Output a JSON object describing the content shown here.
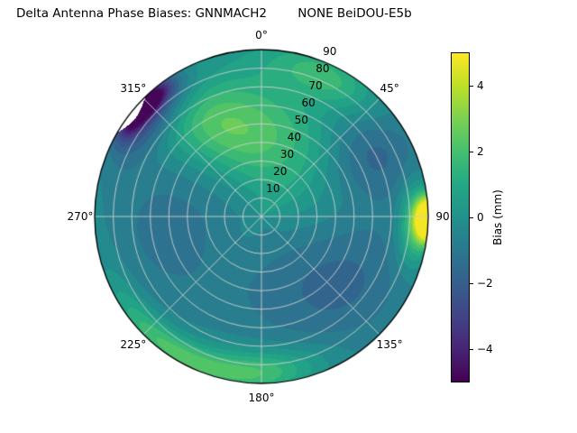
{
  "chart_data": {
    "type": "heatmap",
    "projection": "polar",
    "title": "Delta Antenna Phase Biases: GNNMACH2        NONE BeiDOU-E5b",
    "theta_direction": "clockwise",
    "theta_zero": "top",
    "theta_ticks": [
      {
        "deg": 0,
        "label": "0°"
      },
      {
        "deg": 45,
        "label": "45°"
      },
      {
        "deg": 90,
        "label": "90"
      },
      {
        "deg": 135,
        "label": "135°"
      },
      {
        "deg": 180,
        "label": "180°"
      },
      {
        "deg": 225,
        "label": "225°"
      },
      {
        "deg": 270,
        "label": "270°"
      },
      {
        "deg": 315,
        "label": "315°"
      }
    ],
    "radial_ticks": [
      {
        "v": 10,
        "label": "10"
      },
      {
        "v": 20,
        "label": "20"
      },
      {
        "v": 30,
        "label": "30"
      },
      {
        "v": 40,
        "label": "40"
      },
      {
        "v": 50,
        "label": "50"
      },
      {
        "v": 60,
        "label": "60"
      },
      {
        "v": 70,
        "label": "70"
      },
      {
        "v": 80,
        "label": "80"
      },
      {
        "v": 90,
        "label": "90"
      }
    ],
    "radial_max": 90,
    "radial_label_azimuth_deg": 22.5,
    "grid": true,
    "colorbar": {
      "label": "Bias (mm)",
      "vmin": -5,
      "vmax": 5,
      "ticks": [
        {
          "v": 4,
          "label": "4"
        },
        {
          "v": 2,
          "label": "2"
        },
        {
          "v": 0,
          "label": "0"
        },
        {
          "v": -2,
          "label": "−2"
        },
        {
          "v": -4,
          "label": "−4"
        }
      ]
    },
    "colormap": {
      "name": "viridis",
      "stops": [
        {
          "t": 0.0,
          "color": "#440154"
        },
        {
          "t": 0.1,
          "color": "#482475"
        },
        {
          "t": 0.2,
          "color": "#414487"
        },
        {
          "t": 0.3,
          "color": "#355f8d"
        },
        {
          "t": 0.4,
          "color": "#2a788e"
        },
        {
          "t": 0.5,
          "color": "#21918c"
        },
        {
          "t": 0.6,
          "color": "#22a884"
        },
        {
          "t": 0.7,
          "color": "#44bf70"
        },
        {
          "t": 0.8,
          "color": "#7ad151"
        },
        {
          "t": 0.9,
          "color": "#bddf26"
        },
        {
          "t": 1.0,
          "color": "#fde725"
        }
      ]
    },
    "contour_level_step_mm": 0.5,
    "field_model": {
      "base_mm": 0.1,
      "features": [
        {
          "az": 352,
          "r": 0.5,
          "amp": 2.1,
          "saz": 26,
          "sr": 0.2
        },
        {
          "az": 330,
          "r": 0.68,
          "amp": 1.3,
          "saz": 16,
          "sr": 0.16
        },
        {
          "az": 25,
          "r": 0.92,
          "amp": 1.7,
          "saz": 16,
          "sr": 0.1
        },
        {
          "az": 40,
          "r": 0.3,
          "amp": 0.8,
          "saz": 25,
          "sr": 0.25
        },
        {
          "az": 60,
          "r": 0.78,
          "amp": -1.7,
          "saz": 16,
          "sr": 0.22
        },
        {
          "az": 91,
          "r": 1.0,
          "amp": 8.5,
          "saz": 5,
          "sr": 0.05
        },
        {
          "az": 93,
          "r": 0.93,
          "amp": 2.8,
          "saz": 10,
          "sr": 0.07
        },
        {
          "az": 125,
          "r": 0.65,
          "amp": -1.5,
          "saz": 30,
          "sr": 0.3
        },
        {
          "az": 175,
          "r": 0.4,
          "amp": -0.9,
          "saz": 35,
          "sr": 0.3
        },
        {
          "az": 180,
          "r": 0.92,
          "amp": 1.9,
          "saz": 16,
          "sr": 0.09
        },
        {
          "az": 215,
          "r": 0.96,
          "amp": 2.3,
          "saz": 20,
          "sr": 0.07
        },
        {
          "az": 265,
          "r": 0.55,
          "amp": -1.3,
          "saz": 38,
          "sr": 0.33
        },
        {
          "az": 312,
          "r": 0.9,
          "amp": -2.4,
          "saz": 13,
          "sr": 0.09
        },
        {
          "az": 313,
          "r": 0.965,
          "amp": -6.0,
          "saz": 8,
          "sr": 0.045
        }
      ]
    },
    "mask_sector": {
      "center_az_deg": 308,
      "half_width_deg": 8,
      "max_depth": 0.042
    }
  }
}
